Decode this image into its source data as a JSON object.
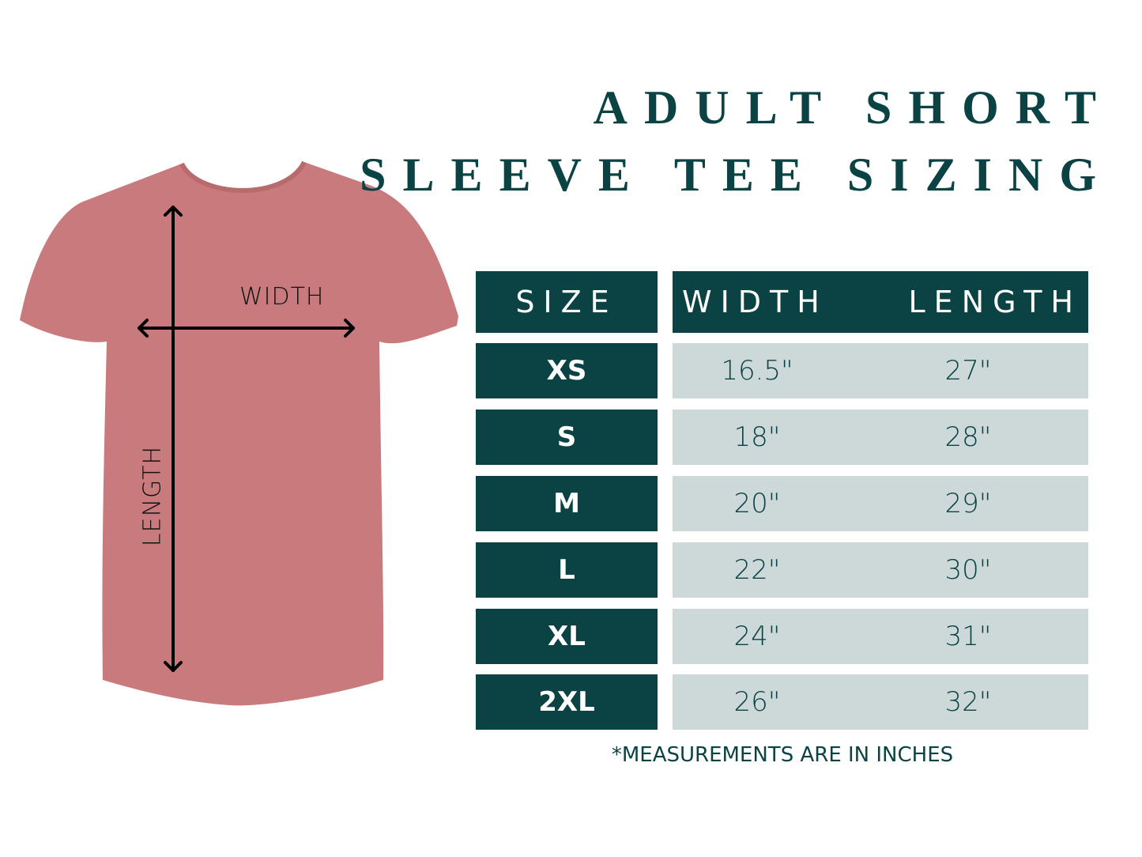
{
  "title": {
    "line1": "ADULT SHORT",
    "line2": "SLEEVE TEE SIZING"
  },
  "diagram": {
    "width_label": "WIDTH",
    "length_label": "LENGTH",
    "tee_color": "#c97a7c"
  },
  "table": {
    "headers": [
      "SIZE",
      "WIDTH",
      "LENGTH"
    ],
    "rows": [
      {
        "size": "XS",
        "width": "16.5\"",
        "length": "27\""
      },
      {
        "size": "S",
        "width": "18\"",
        "length": "28\""
      },
      {
        "size": "M",
        "width": "20\"",
        "length": "29\""
      },
      {
        "size": "L",
        "width": "22\"",
        "length": "30\""
      },
      {
        "size": "XL",
        "width": "24\"",
        "length": "31\""
      },
      {
        "size": "2XL",
        "width": "26\"",
        "length": "32\""
      }
    ]
  },
  "note": "*MEASUREMENTS ARE IN INCHES",
  "colors": {
    "dark_teal": "#0b4345",
    "light_gray": "#cdd9d9"
  }
}
